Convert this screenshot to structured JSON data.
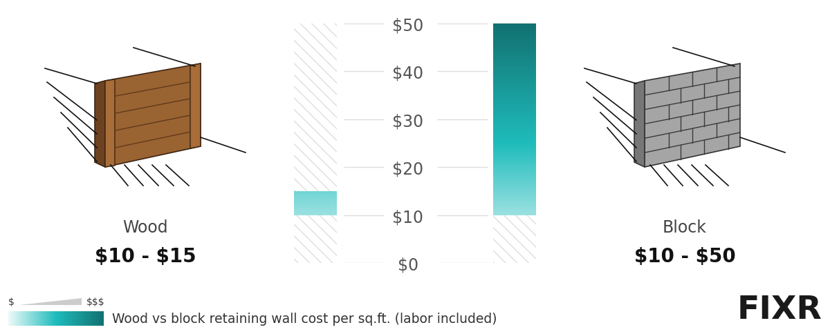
{
  "chart_data": {
    "type": "bar",
    "title": "Wood vs block retaining wall cost per sq.ft. (labor included)",
    "categories": [
      "Wood",
      "Block"
    ],
    "values": [
      [
        10,
        15
      ],
      [
        10,
        50
      ]
    ],
    "value_labels": [
      "$10 - $15",
      "$10 - $50"
    ],
    "color": "#1fbcbc",
    "ylim": [
      0,
      50
    ],
    "yticks": [
      {
        "value": 0,
        "label": "$0"
      },
      {
        "value": 10,
        "label": "$10"
      },
      {
        "value": 20,
        "label": "$20"
      },
      {
        "value": 30,
        "label": "$30"
      },
      {
        "value": 40,
        "label": "$40"
      },
      {
        "value": 50,
        "label": "$50"
      }
    ],
    "grid": true,
    "annotations": {
      "scale_low": "$",
      "scale_high": "$$$",
      "logo": "FIXR"
    }
  }
}
